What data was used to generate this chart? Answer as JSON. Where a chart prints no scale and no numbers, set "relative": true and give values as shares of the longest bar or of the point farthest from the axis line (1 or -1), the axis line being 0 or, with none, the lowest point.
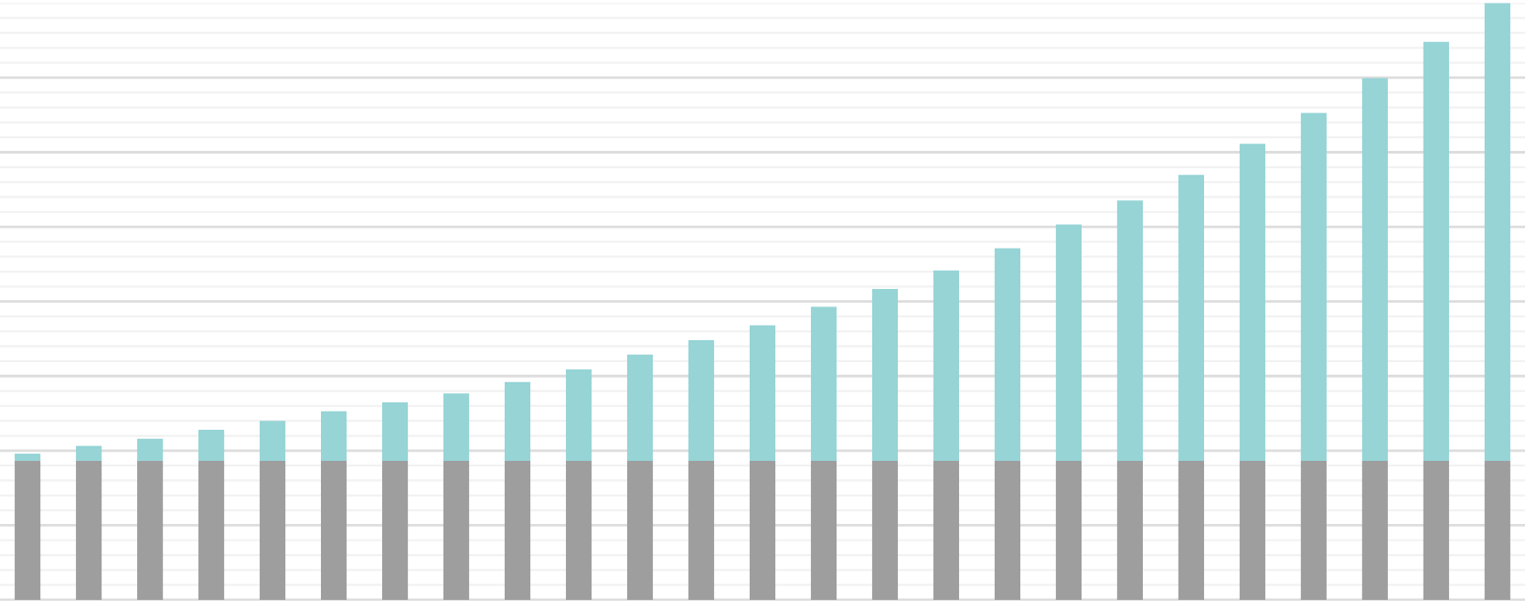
{
  "chart_data": {
    "type": "bar",
    "relative": true,
    "stacked": true,
    "grid": "y",
    "categories": [
      null,
      null,
      null,
      null,
      null,
      null,
      null,
      null,
      null,
      null,
      null,
      null,
      null,
      null,
      null,
      null,
      null,
      null,
      null,
      null,
      null,
      null,
      null,
      null,
      null
    ],
    "series": [
      {
        "color": "#9e9e9e",
        "values": [
          0.233,
          0.233,
          0.233,
          0.233,
          0.233,
          0.233,
          0.233,
          0.233,
          0.233,
          0.233,
          0.233,
          0.233,
          0.233,
          0.233,
          0.233,
          0.233,
          0.233,
          0.233,
          0.233,
          0.233,
          0.233,
          0.233,
          0.233,
          0.233,
          0.233
        ]
      },
      {
        "color": "#96d4d6",
        "values": [
          0.012,
          0.025,
          0.037,
          0.052,
          0.067,
          0.083,
          0.098,
          0.113,
          0.132,
          0.153,
          0.178,
          0.202,
          0.227,
          0.258,
          0.288,
          0.319,
          0.356,
          0.396,
          0.436,
          0.479,
          0.531,
          0.583,
          0.641,
          0.702,
          0.767
        ]
      }
    ]
  }
}
